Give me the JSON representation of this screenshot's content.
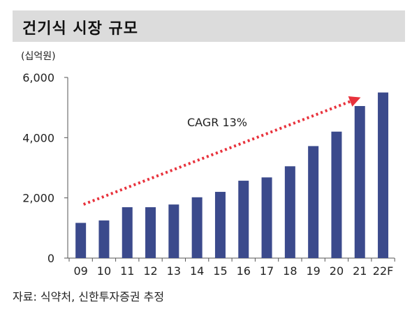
{
  "title": "건기식 시장 규모",
  "source": "자료: 식약처, 신한투자증권 추정",
  "colors": {
    "bar": "#3b4a8c",
    "arrow": "#e8323c",
    "title_bg": "#dcdcdc"
  },
  "chart_data": {
    "type": "bar",
    "unit_label": "(십억원)",
    "categories": [
      "09",
      "10",
      "11",
      "12",
      "13",
      "14",
      "15",
      "16",
      "17",
      "18",
      "19",
      "20",
      "21",
      "22F"
    ],
    "values": [
      1170,
      1250,
      1690,
      1690,
      1780,
      2020,
      2200,
      2570,
      2680,
      3050,
      3720,
      4200,
      5050,
      5500
    ],
    "ylim": [
      0,
      6000
    ],
    "yticks": [
      0,
      2000,
      4000,
      6000
    ],
    "ytick_labels": [
      "0",
      "2,000",
      "4,000",
      "6,000"
    ],
    "annotation": {
      "text": "CAGR 13%",
      "from_category": "09",
      "to_category": "21"
    },
    "grid": false,
    "legend": "none"
  }
}
